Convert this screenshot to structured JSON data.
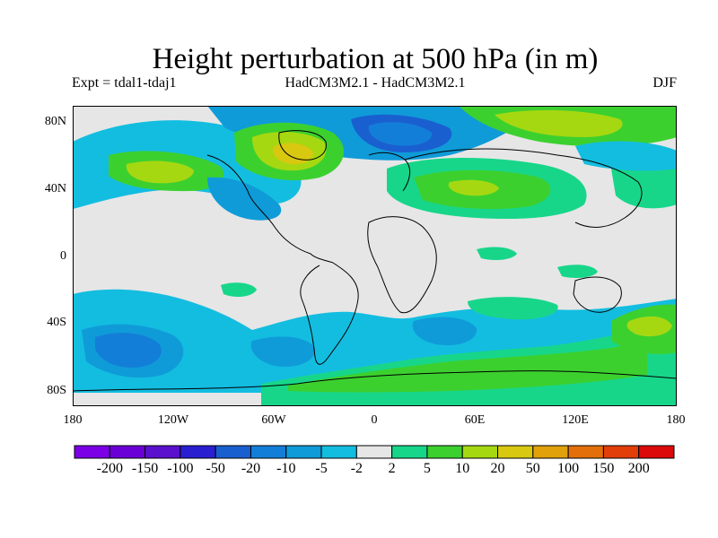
{
  "title": "Height perturbation at 500 hPa (in m)",
  "subtitle_left": "Expt = tdal1-tdaj1",
  "subtitle_center": "HadCM3M2.1 - HadCM3M2.1",
  "subtitle_right": "DJF",
  "lat_labels": [
    "80N",
    "40N",
    "0",
    "40S",
    "80S"
  ],
  "lon_labels": [
    "180",
    "120W",
    "60W",
    "0",
    "60E",
    "120E",
    "180"
  ],
  "colorbar": {
    "colors": [
      "#7b00e6",
      "#6a00d6",
      "#5a10cc",
      "#2a1fd0",
      "#1a5fd0",
      "#137ed8",
      "#0f9bd8",
      "#13bde0",
      "#e6e6e6",
      "#17d68a",
      "#3cd02f",
      "#a6d811",
      "#d9c810",
      "#e0a10a",
      "#e36f0a",
      "#e23e0a",
      "#dc0a0a"
    ],
    "labels": [
      "-200",
      "-150",
      "-100",
      "-50",
      "-20",
      "-10",
      "-5",
      "-2",
      "2",
      "5",
      "10",
      "20",
      "50",
      "100",
      "150",
      "200"
    ]
  },
  "map": {
    "colors": {
      "neutral": "#e6e6e6",
      "neg_2": "#13bde0",
      "neg_5": "#0f9bd8",
      "neg_10": "#137ed8",
      "neg_20": "#1a5fd0",
      "pos_2": "#17d68a",
      "pos_5": "#3cd02f",
      "pos_10": "#a6d811",
      "pos_20": "#d9c810",
      "coast": "#000000"
    }
  }
}
